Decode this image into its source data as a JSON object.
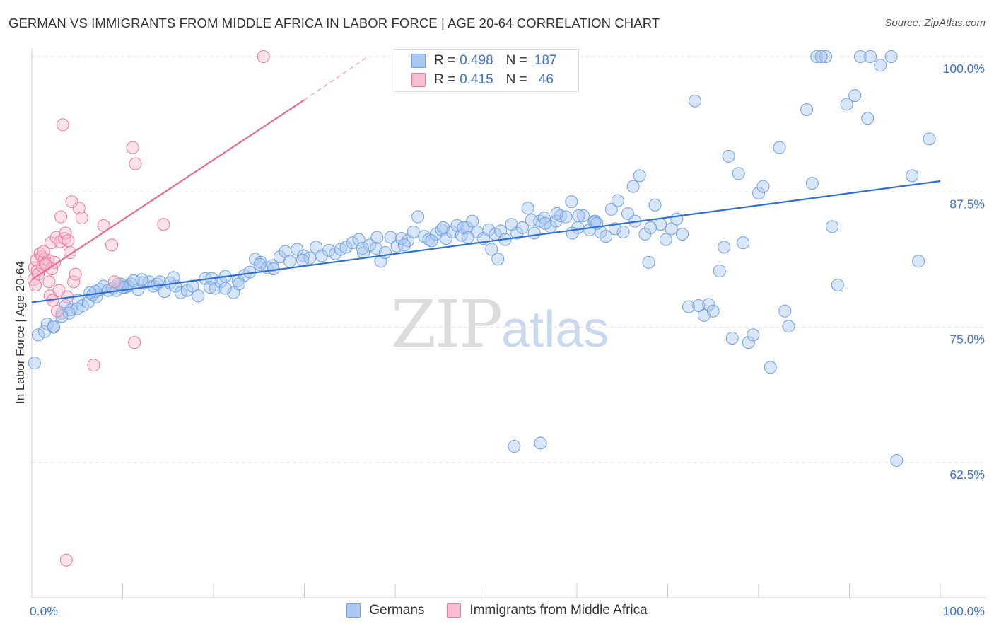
{
  "title": "GERMAN VS IMMIGRANTS FROM MIDDLE AFRICA IN LABOR FORCE | AGE 20-64 CORRELATION CHART",
  "source": "Source: ZipAtlas.com",
  "watermark": {
    "zip": "ZIP",
    "atlas": "atlas"
  },
  "legend": {
    "r_label": "R =",
    "n_label": "N =",
    "series": [
      {
        "name": "Germans",
        "r": "0.498",
        "n": "187",
        "color": "#6fa0e0",
        "fill": "#aac8f0"
      },
      {
        "name": "Immigrants from Middle Africa",
        "r": "0.415",
        "n": "46",
        "color": "#ea7aa0",
        "fill": "#f7bfd1"
      }
    ]
  },
  "chart_data": {
    "type": "scatter",
    "title": "GERMAN VS IMMIGRANTS FROM MIDDLE AFRICA IN LABOR FORCE | AGE 20-64 CORRELATION CHART",
    "xlabel": "",
    "ylabel": "In Labor Force | Age 20-64",
    "xlim": [
      0,
      100
    ],
    "ylim": [
      52,
      101
    ],
    "x_tick_labels": [
      "0.0%",
      "100.0%"
    ],
    "y_ticks": [
      62.5,
      75.0,
      87.5,
      100.0
    ],
    "y_tick_labels": [
      "62.5%",
      "75.0%",
      "87.5%",
      "100.0%"
    ],
    "grid": "horizontal dashed",
    "legend_position": "top-center",
    "series": [
      {
        "name": "Germans",
        "color": "#6fa0e0",
        "trend": {
          "x": [
            0,
            100
          ],
          "y": [
            77.3,
            88.5
          ],
          "style": "solid"
        },
        "points": [
          [
            0.3,
            71.7
          ],
          [
            0.7,
            74.3
          ],
          [
            1.4,
            74.6
          ],
          [
            1.7,
            75.3
          ],
          [
            2.4,
            75.0
          ],
          [
            3.3,
            76.3
          ],
          [
            3.7,
            77.0
          ],
          [
            4.3,
            76.6
          ],
          [
            5.1,
            77.5
          ],
          [
            5.6,
            77.0
          ],
          [
            6.2,
            77.3
          ],
          [
            6.7,
            78.0
          ],
          [
            7.1,
            77.8
          ],
          [
            7.5,
            78.5
          ],
          [
            7.9,
            78.8
          ],
          [
            8.4,
            78.4
          ],
          [
            8.9,
            78.6
          ],
          [
            9.3,
            78.4
          ],
          [
            9.8,
            79.0
          ],
          [
            10.3,
            78.7
          ],
          [
            10.6,
            78.8
          ],
          [
            10.9,
            79.0
          ],
          [
            11.2,
            79.3
          ],
          [
            11.7,
            78.5
          ],
          [
            12.3,
            79.1
          ],
          [
            12.9,
            79.2
          ],
          [
            13.4,
            78.8
          ],
          [
            13.8,
            79.0
          ],
          [
            14.1,
            79.2
          ],
          [
            14.6,
            78.3
          ],
          [
            15.2,
            79.1
          ],
          [
            15.8,
            78.8
          ],
          [
            16.4,
            78.2
          ],
          [
            17.1,
            78.4
          ],
          [
            17.7,
            78.8
          ],
          [
            18.3,
            77.9
          ],
          [
            19.1,
            79.5
          ],
          [
            19.6,
            78.7
          ],
          [
            20.2,
            78.6
          ],
          [
            20.8,
            79.2
          ],
          [
            21.3,
            79.7
          ],
          [
            22.2,
            78.2
          ],
          [
            22.7,
            79.3
          ],
          [
            23.4,
            79.8
          ],
          [
            24.0,
            80.1
          ],
          [
            24.6,
            81.3
          ],
          [
            25.2,
            81.0
          ],
          [
            25.9,
            80.5
          ],
          [
            26.5,
            80.7
          ],
          [
            27.3,
            81.5
          ],
          [
            27.9,
            82.0
          ],
          [
            28.4,
            81.1
          ],
          [
            29.2,
            82.2
          ],
          [
            29.9,
            81.6
          ],
          [
            30.6,
            81.4
          ],
          [
            31.3,
            82.4
          ],
          [
            31.9,
            81.6
          ],
          [
            32.7,
            82.1
          ],
          [
            33.4,
            81.8
          ],
          [
            34.0,
            82.2
          ],
          [
            34.6,
            82.4
          ],
          [
            35.3,
            82.8
          ],
          [
            36.0,
            83.1
          ],
          [
            36.5,
            81.9
          ],
          [
            37.2,
            82.6
          ],
          [
            37.9,
            82.3
          ],
          [
            38.4,
            81.1
          ],
          [
            38.9,
            81.9
          ],
          [
            39.5,
            83.3
          ],
          [
            40.2,
            82.5
          ],
          [
            40.7,
            83.2
          ],
          [
            41.4,
            83.0
          ],
          [
            42.0,
            83.8
          ],
          [
            42.5,
            85.2
          ],
          [
            43.2,
            83.4
          ],
          [
            43.7,
            83.1
          ],
          [
            44.5,
            83.6
          ],
          [
            45.1,
            84.0
          ],
          [
            45.6,
            83.2
          ],
          [
            46.3,
            83.8
          ],
          [
            46.8,
            84.4
          ],
          [
            47.3,
            83.5
          ],
          [
            47.9,
            84.2
          ],
          [
            48.5,
            84.8
          ],
          [
            49.0,
            83.8
          ],
          [
            49.7,
            83.2
          ],
          [
            50.3,
            84.0
          ],
          [
            51.0,
            83.6
          ],
          [
            51.6,
            83.9
          ],
          [
            52.1,
            83.1
          ],
          [
            52.8,
            84.5
          ],
          [
            53.4,
            83.7
          ],
          [
            54.0,
            84.2
          ],
          [
            54.6,
            86.0
          ],
          [
            55.3,
            83.7
          ],
          [
            55.9,
            84.8
          ],
          [
            56.4,
            85.1
          ],
          [
            57.1,
            84.3
          ],
          [
            57.7,
            84.8
          ],
          [
            58.2,
            85.3
          ],
          [
            58.8,
            85.2
          ],
          [
            59.4,
            86.6
          ],
          [
            60.1,
            84.2
          ],
          [
            60.7,
            85.3
          ],
          [
            61.4,
            84.0
          ],
          [
            62.0,
            84.8
          ],
          [
            62.6,
            83.8
          ],
          [
            63.2,
            83.4
          ],
          [
            63.8,
            85.9
          ],
          [
            64.5,
            86.7
          ],
          [
            65.1,
            83.8
          ],
          [
            65.6,
            85.5
          ],
          [
            66.2,
            88.0
          ],
          [
            66.9,
            89.0
          ],
          [
            67.5,
            83.6
          ],
          [
            67.9,
            81.0
          ],
          [
            68.6,
            86.3
          ],
          [
            69.2,
            84.5
          ],
          [
            69.8,
            83.1
          ],
          [
            70.4,
            84.1
          ],
          [
            71.0,
            85.0
          ],
          [
            71.6,
            83.6
          ],
          [
            72.3,
            76.9
          ],
          [
            73.0,
            95.9
          ],
          [
            73.4,
            77.0
          ],
          [
            74.0,
            76.1
          ],
          [
            74.5,
            77.1
          ],
          [
            75.0,
            76.5
          ],
          [
            75.7,
            80.2
          ],
          [
            76.2,
            82.4
          ],
          [
            76.7,
            90.8
          ],
          [
            77.1,
            74.0
          ],
          [
            77.8,
            89.2
          ],
          [
            78.3,
            82.8
          ],
          [
            78.9,
            73.6
          ],
          [
            79.4,
            74.3
          ],
          [
            80.0,
            87.4
          ],
          [
            80.5,
            88.0
          ],
          [
            81.3,
            71.3
          ],
          [
            82.3,
            91.6
          ],
          [
            82.9,
            76.5
          ],
          [
            83.3,
            75.1
          ],
          [
            85.3,
            95.1
          ],
          [
            85.9,
            88.3
          ],
          [
            86.4,
            100.0
          ],
          [
            87.4,
            100.0
          ],
          [
            88.1,
            84.3
          ],
          [
            88.7,
            78.9
          ],
          [
            89.7,
            95.6
          ],
          [
            90.6,
            96.4
          ],
          [
            91.2,
            100.0
          ],
          [
            92.0,
            94.3
          ],
          [
            92.3,
            100.0
          ],
          [
            93.4,
            99.2
          ],
          [
            94.6,
            100.0
          ],
          [
            95.2,
            62.7
          ],
          [
            96.9,
            89.0
          ],
          [
            97.6,
            81.1
          ],
          [
            98.8,
            92.4
          ],
          [
            86.9,
            100.0
          ],
          [
            53.1,
            64.0
          ],
          [
            56.0,
            64.3
          ],
          [
            51.3,
            81.3
          ],
          [
            61.9,
            84.7
          ],
          [
            66.4,
            84.8
          ],
          [
            59.5,
            83.7
          ],
          [
            57.8,
            85.5
          ],
          [
            64.2,
            84.1
          ],
          [
            48.0,
            83.3
          ],
          [
            44.0,
            83.0
          ],
          [
            56.5,
            84.6
          ],
          [
            41.0,
            82.6
          ],
          [
            38.0,
            83.3
          ],
          [
            36.4,
            82.3
          ],
          [
            29.8,
            81.2
          ],
          [
            26.6,
            80.4
          ],
          [
            25.1,
            80.8
          ],
          [
            22.8,
            79.0
          ],
          [
            21.3,
            78.6
          ],
          [
            19.8,
            79.5
          ],
          [
            15.6,
            79.6
          ],
          [
            12.1,
            79.4
          ],
          [
            10.0,
            78.7
          ],
          [
            9.5,
            79.0
          ],
          [
            7.0,
            78.3
          ],
          [
            6.4,
            78.2
          ],
          [
            5.0,
            76.7
          ],
          [
            4.1,
            76.3
          ],
          [
            3.3,
            76.0
          ],
          [
            2.4,
            75.1
          ],
          [
            60.2,
            85.3
          ],
          [
            62.2,
            84.6
          ],
          [
            55.0,
            84.9
          ],
          [
            50.6,
            82.2
          ],
          [
            47.5,
            84.2
          ],
          [
            45.3,
            84.2
          ],
          [
            68.1,
            84.2
          ]
        ]
      },
      {
        "name": "Immigrants from Middle Africa",
        "color": "#ea7aa0",
        "trend": {
          "x": [
            0,
            30.0
          ],
          "y": [
            79.4,
            96.0
          ],
          "style": "solid",
          "extends_dashed_to": [
            37.0,
            100.0
          ]
        },
        "points": [
          [
            0.2,
            79.4
          ],
          [
            0.3,
            80.5
          ],
          [
            0.5,
            81.2
          ],
          [
            0.6,
            80.2
          ],
          [
            0.7,
            79.9
          ],
          [
            0.9,
            81.8
          ],
          [
            1.1,
            81.5
          ],
          [
            1.2,
            80.6
          ],
          [
            1.4,
            81.3
          ],
          [
            1.6,
            80.9
          ],
          [
            1.8,
            81.2
          ],
          [
            1.9,
            79.2
          ],
          [
            2.0,
            77.9
          ],
          [
            2.1,
            82.8
          ],
          [
            2.3,
            77.5
          ],
          [
            2.5,
            81.0
          ],
          [
            2.7,
            83.3
          ],
          [
            2.8,
            76.5
          ],
          [
            3.0,
            78.4
          ],
          [
            3.1,
            82.9
          ],
          [
            3.2,
            85.2
          ],
          [
            3.4,
            93.7
          ],
          [
            3.6,
            83.2
          ],
          [
            3.7,
            83.7
          ],
          [
            3.9,
            77.8
          ],
          [
            4.0,
            83.0
          ],
          [
            4.2,
            81.9
          ],
          [
            4.4,
            86.6
          ],
          [
            4.6,
            79.2
          ],
          [
            4.8,
            79.9
          ],
          [
            5.2,
            86.0
          ],
          [
            5.5,
            85.1
          ],
          [
            6.8,
            71.5
          ],
          [
            7.9,
            84.4
          ],
          [
            8.8,
            82.6
          ],
          [
            9.1,
            79.2
          ],
          [
            11.1,
            91.6
          ],
          [
            11.3,
            73.6
          ],
          [
            11.4,
            90.1
          ],
          [
            14.5,
            84.5
          ],
          [
            25.5,
            100.0
          ],
          [
            1.3,
            82.0
          ],
          [
            0.4,
            78.9
          ],
          [
            2.2,
            80.4
          ],
          [
            3.8,
            53.5
          ],
          [
            1.5,
            80.8
          ]
        ]
      }
    ]
  }
}
